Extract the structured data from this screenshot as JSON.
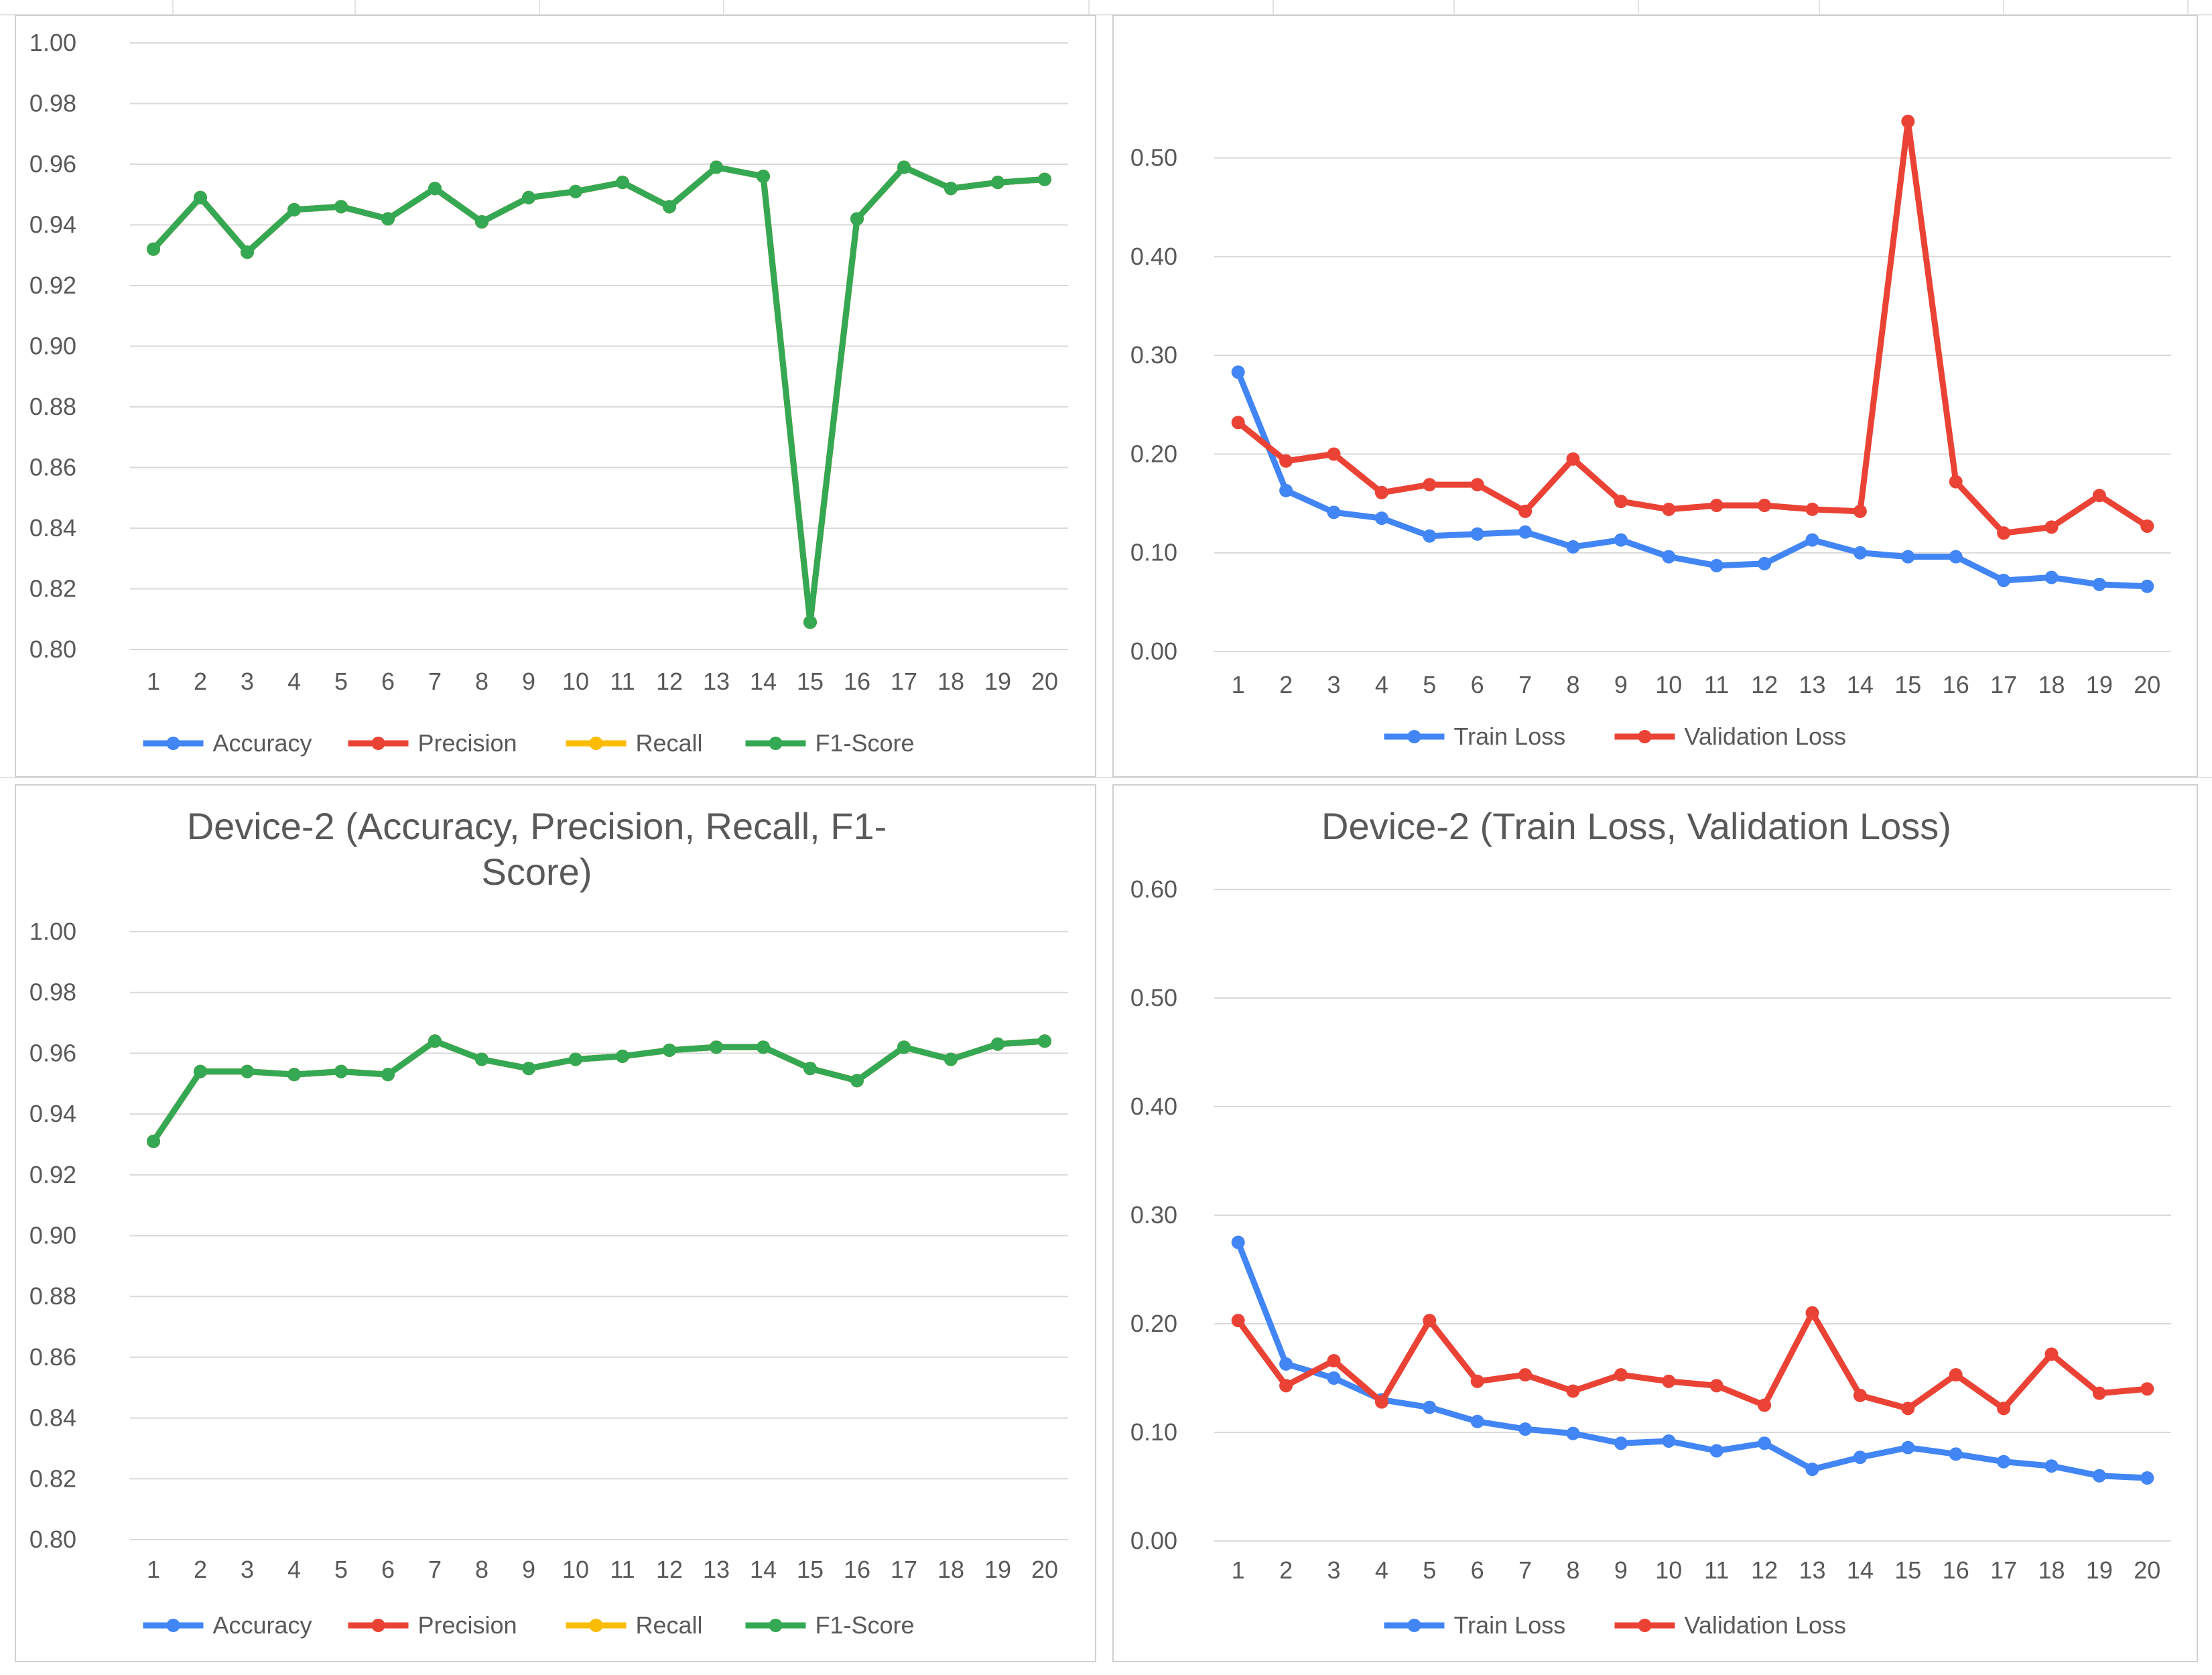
{
  "colors": {
    "accuracy": "#4285f4",
    "precision": "#ea4335",
    "recall": "#fbbc04",
    "f1": "#34a853",
    "train_loss": "#4285f4",
    "validation_loss": "#ea4335",
    "gridline": "#d9d9d9",
    "text": "#595959"
  },
  "chart_data": [
    {
      "id": "device1-metrics",
      "type": "line",
      "title": "",
      "xlabel": "",
      "ylabel": "",
      "categories": [
        "1",
        "2",
        "3",
        "4",
        "5",
        "6",
        "7",
        "8",
        "9",
        "10",
        "11",
        "12",
        "13",
        "14",
        "15",
        "16",
        "17",
        "18",
        "19",
        "20"
      ],
      "ylim": [
        0.8,
        1.0
      ],
      "yticks": [
        "1.00",
        "0.98",
        "0.96",
        "0.94",
        "0.92",
        "0.90",
        "0.88",
        "0.86",
        "0.84",
        "0.82",
        "0.80"
      ],
      "grid": true,
      "legend": "bottom",
      "series": [
        {
          "name": "Accuracy",
          "color_key": "accuracy",
          "values": [
            0.932,
            0.949,
            0.931,
            0.945,
            0.946,
            0.942,
            0.952,
            0.941,
            0.949,
            0.951,
            0.954,
            0.946,
            0.959,
            0.956,
            0.809,
            0.942,
            0.959,
            0.952,
            0.954,
            0.955
          ]
        },
        {
          "name": "Precision",
          "color_key": "precision",
          "values": [
            0.932,
            0.949,
            0.931,
            0.945,
            0.946,
            0.942,
            0.952,
            0.941,
            0.949,
            0.951,
            0.954,
            0.946,
            0.959,
            0.956,
            0.809,
            0.942,
            0.959,
            0.952,
            0.954,
            0.955
          ]
        },
        {
          "name": "Recall",
          "color_key": "recall",
          "values": [
            0.932,
            0.949,
            0.931,
            0.945,
            0.946,
            0.942,
            0.952,
            0.941,
            0.949,
            0.951,
            0.954,
            0.946,
            0.959,
            0.956,
            0.809,
            0.942,
            0.959,
            0.952,
            0.954,
            0.955
          ]
        },
        {
          "name": "F1-Score",
          "color_key": "f1",
          "values": [
            0.932,
            0.949,
            0.931,
            0.945,
            0.946,
            0.942,
            0.952,
            0.941,
            0.949,
            0.951,
            0.954,
            0.946,
            0.959,
            0.956,
            0.809,
            0.942,
            0.959,
            0.952,
            0.954,
            0.955
          ]
        }
      ]
    },
    {
      "id": "device1-loss",
      "type": "line",
      "title": "",
      "xlabel": "",
      "ylabel": "",
      "categories": [
        "1",
        "2",
        "3",
        "4",
        "5",
        "6",
        "7",
        "8",
        "9",
        "10",
        "11",
        "12",
        "13",
        "14",
        "15",
        "16",
        "17",
        "18",
        "19",
        "20"
      ],
      "ylim": [
        0.0,
        0.55
      ],
      "yticks": [
        "0.50",
        "0.40",
        "0.30",
        "0.20",
        "0.10",
        "0.00"
      ],
      "grid": true,
      "legend": "bottom",
      "series": [
        {
          "name": "Train Loss",
          "color_key": "train_loss",
          "values": [
            0.283,
            0.163,
            0.141,
            0.135,
            0.117,
            0.119,
            0.121,
            0.106,
            0.113,
            0.096,
            0.087,
            0.089,
            0.113,
            0.1,
            0.096,
            0.096,
            0.072,
            0.075,
            0.068,
            0.066
          ]
        },
        {
          "name": "Validation Loss",
          "color_key": "validation_loss",
          "values": [
            0.232,
            0.193,
            0.2,
            0.161,
            0.169,
            0.169,
            0.142,
            0.195,
            0.152,
            0.144,
            0.148,
            0.148,
            0.144,
            0.142,
            0.537,
            0.172,
            0.12,
            0.126,
            0.158,
            0.127
          ]
        }
      ]
    },
    {
      "id": "device2-metrics",
      "type": "line",
      "title": "Device-2 (Accuracy, Precision, Recall, F1-Score)",
      "title_lines": [
        "Device-2 (Accuracy, Precision, Recall, F1-",
        "Score)"
      ],
      "xlabel": "",
      "ylabel": "",
      "categories": [
        "1",
        "2",
        "3",
        "4",
        "5",
        "6",
        "7",
        "8",
        "9",
        "10",
        "11",
        "12",
        "13",
        "14",
        "15",
        "16",
        "17",
        "18",
        "19",
        "20"
      ],
      "ylim": [
        0.8,
        1.0
      ],
      "yticks": [
        "1.00",
        "0.98",
        "0.96",
        "0.94",
        "0.92",
        "0.90",
        "0.88",
        "0.86",
        "0.84",
        "0.82",
        "0.80"
      ],
      "grid": true,
      "legend": "bottom",
      "series": [
        {
          "name": "Accuracy",
          "color_key": "accuracy",
          "values": [
            0.931,
            0.954,
            0.954,
            0.953,
            0.954,
            0.953,
            0.964,
            0.958,
            0.955,
            0.958,
            0.959,
            0.961,
            0.962,
            0.962,
            0.955,
            0.951,
            0.962,
            0.958,
            0.963,
            0.964
          ]
        },
        {
          "name": "Precision",
          "color_key": "precision",
          "values": [
            0.931,
            0.954,
            0.954,
            0.953,
            0.954,
            0.953,
            0.964,
            0.958,
            0.955,
            0.958,
            0.959,
            0.961,
            0.962,
            0.962,
            0.955,
            0.951,
            0.962,
            0.958,
            0.963,
            0.964
          ]
        },
        {
          "name": "Recall",
          "color_key": "recall",
          "values": [
            0.931,
            0.954,
            0.954,
            0.953,
            0.954,
            0.953,
            0.964,
            0.958,
            0.955,
            0.958,
            0.959,
            0.961,
            0.962,
            0.962,
            0.955,
            0.951,
            0.962,
            0.958,
            0.963,
            0.964
          ]
        },
        {
          "name": "F1-Score",
          "color_key": "f1",
          "values": [
            0.931,
            0.954,
            0.954,
            0.953,
            0.954,
            0.953,
            0.964,
            0.958,
            0.955,
            0.958,
            0.959,
            0.961,
            0.962,
            0.962,
            0.955,
            0.951,
            0.962,
            0.958,
            0.963,
            0.964
          ]
        }
      ]
    },
    {
      "id": "device2-loss",
      "type": "line",
      "title": "Device-2 (Train Loss, Validation Loss)",
      "title_lines": [
        "Device-2 (Train Loss, Validation Loss)"
      ],
      "xlabel": "",
      "ylabel": "",
      "categories": [
        "1",
        "2",
        "3",
        "4",
        "5",
        "6",
        "7",
        "8",
        "9",
        "10",
        "11",
        "12",
        "13",
        "14",
        "15",
        "16",
        "17",
        "18",
        "19",
        "20"
      ],
      "ylim": [
        0.0,
        0.6
      ],
      "yticks": [
        "0.60",
        "0.50",
        "0.40",
        "0.30",
        "0.20",
        "0.10",
        "0.00"
      ],
      "grid": true,
      "legend": "bottom",
      "series": [
        {
          "name": "Train Loss",
          "color_key": "train_loss",
          "values": [
            0.275,
            0.163,
            0.15,
            0.13,
            0.123,
            0.11,
            0.103,
            0.099,
            0.09,
            0.092,
            0.083,
            0.09,
            0.066,
            0.077,
            0.086,
            0.08,
            0.073,
            0.069,
            0.06,
            0.058
          ]
        },
        {
          "name": "Validation Loss",
          "color_key": "validation_loss",
          "values": [
            0.203,
            0.143,
            0.166,
            0.128,
            0.203,
            0.147,
            0.153,
            0.138,
            0.153,
            0.147,
            0.143,
            0.125,
            0.21,
            0.134,
            0.122,
            0.153,
            0.122,
            0.172,
            0.136,
            0.14
          ]
        }
      ]
    }
  ]
}
